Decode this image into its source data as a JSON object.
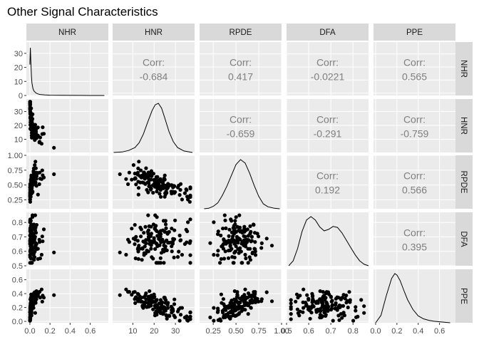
{
  "title": "Other Signal Characteristics",
  "variables": [
    "NHR",
    "HNR",
    "RPDE",
    "DFA",
    "PPE"
  ],
  "colors": {
    "panel_bg": "#ebebeb",
    "grid_major": "#ffffff",
    "strip_bg": "#d9d9d9",
    "points": "#000000",
    "corr_text": "#7f7f7f",
    "tick_text": "#4d4d4d"
  },
  "chart_data": {
    "type": "scatter",
    "subtype": "pairs-plot",
    "title": "Other Signal Characteristics",
    "variables": [
      "NHR",
      "HNR",
      "RPDE",
      "DFA",
      "PPE"
    ],
    "axes": {
      "NHR": {
        "range": [
          -0.035,
          0.78
        ],
        "ticks": [
          0.0,
          0.2,
          0.4,
          0.6
        ],
        "tick_labels": [
          "0.0",
          "0.2",
          "0.4",
          "0.6"
        ],
        "y_ticks_on_diagonal": [
          0,
          10,
          20,
          30
        ],
        "y_tick_labels_on_diagonal": [
          "0",
          "10",
          "20",
          "30"
        ],
        "density_max": 35
      },
      "HNR": {
        "range": [
          0.5,
          39
        ],
        "ticks": [
          10,
          20,
          30
        ],
        "tick_labels": [
          "10",
          "20",
          "30"
        ]
      },
      "RPDE": {
        "range": [
          0.1,
          1.0
        ],
        "ticks": [
          0.25,
          0.5,
          0.75,
          1.0
        ],
        "tick_labels": [
          "0.25",
          "0.50",
          "0.75",
          "1.00"
        ]
      },
      "DFA": {
        "range": [
          0.5,
          0.87
        ],
        "ticks": [
          0.5,
          0.6,
          0.7,
          0.8
        ],
        "tick_labels": [
          "0.5",
          "0.6",
          "0.7",
          "0.8"
        ]
      },
      "PPE": {
        "range": [
          -0.02,
          0.75
        ],
        "ticks": [
          0.0,
          0.2,
          0.4,
          0.6
        ],
        "tick_labels": [
          "0.0",
          "0.2",
          "0.4",
          "0.6"
        ]
      }
    },
    "correlations": [
      {
        "row": "NHR",
        "col": "HNR",
        "label": "Corr:",
        "value": "-0.684"
      },
      {
        "row": "NHR",
        "col": "RPDE",
        "label": "Corr:",
        "value": "0.417"
      },
      {
        "row": "NHR",
        "col": "DFA",
        "label": "Corr:",
        "value": "-0.0221"
      },
      {
        "row": "NHR",
        "col": "PPE",
        "label": "Corr:",
        "value": "0.565"
      },
      {
        "row": "HNR",
        "col": "RPDE",
        "label": "Corr:",
        "value": "-0.659"
      },
      {
        "row": "HNR",
        "col": "DFA",
        "label": "Corr:",
        "value": "-0.291"
      },
      {
        "row": "HNR",
        "col": "PPE",
        "label": "Corr:",
        "value": "-0.759"
      },
      {
        "row": "RPDE",
        "col": "DFA",
        "label": "Corr:",
        "value": "0.192"
      },
      {
        "row": "RPDE",
        "col": "PPE",
        "label": "Corr:",
        "value": "0.566"
      },
      {
        "row": "DFA",
        "col": "PPE",
        "label": "Corr:",
        "value": "0.395"
      }
    ],
    "densities": {
      "NHR": {
        "x": [
          0.0,
          0.005,
          0.01,
          0.015,
          0.02,
          0.03,
          0.04,
          0.06,
          0.08,
          0.1,
          0.15,
          0.2,
          0.3,
          0.5,
          0.74
        ],
        "y": [
          22,
          34,
          24,
          14,
          9,
          5,
          3.2,
          1.8,
          1.1,
          0.7,
          0.35,
          0.2,
          0.1,
          0.04,
          0.0
        ]
      },
      "HNR": {
        "x": [
          1,
          5,
          8,
          11,
          13,
          15,
          17,
          19,
          20.5,
          22,
          23.5,
          25,
          27,
          29,
          31,
          34,
          38
        ],
        "y": [
          0.0,
          0.01,
          0.04,
          0.1,
          0.2,
          0.38,
          0.62,
          0.85,
          0.97,
          1.0,
          0.9,
          0.7,
          0.42,
          0.22,
          0.1,
          0.03,
          0.0
        ]
      },
      "RPDE": {
        "x": [
          0.15,
          0.2,
          0.25,
          0.3,
          0.35,
          0.4,
          0.45,
          0.5,
          0.55,
          0.6,
          0.65,
          0.7,
          0.75,
          0.8,
          0.85,
          0.92,
          0.98
        ],
        "y": [
          0.0,
          0.01,
          0.05,
          0.12,
          0.27,
          0.46,
          0.68,
          0.9,
          1.0,
          0.93,
          0.72,
          0.47,
          0.25,
          0.1,
          0.04,
          0.01,
          0.0
        ]
      },
      "DFA": {
        "x": [
          0.51,
          0.53,
          0.55,
          0.57,
          0.59,
          0.61,
          0.63,
          0.65,
          0.67,
          0.69,
          0.71,
          0.73,
          0.75,
          0.77,
          0.79,
          0.81,
          0.83,
          0.85,
          0.87
        ],
        "y": [
          0.0,
          0.1,
          0.35,
          0.7,
          0.93,
          1.0,
          0.93,
          0.79,
          0.71,
          0.74,
          0.8,
          0.78,
          0.67,
          0.52,
          0.37,
          0.22,
          0.1,
          0.03,
          0.0
        ]
      },
      "PPE": {
        "x": [
          0.0,
          0.05,
          0.1,
          0.15,
          0.18,
          0.2,
          0.23,
          0.27,
          0.3,
          0.35,
          0.4,
          0.45,
          0.5,
          0.55,
          0.6,
          0.7
        ],
        "y": [
          0.0,
          0.15,
          0.55,
          0.9,
          1.0,
          0.97,
          0.86,
          0.63,
          0.47,
          0.27,
          0.14,
          0.08,
          0.05,
          0.03,
          0.02,
          0.0
        ]
      }
    },
    "scatter_points_per_panel": 140,
    "grid": true,
    "legend": "none"
  }
}
